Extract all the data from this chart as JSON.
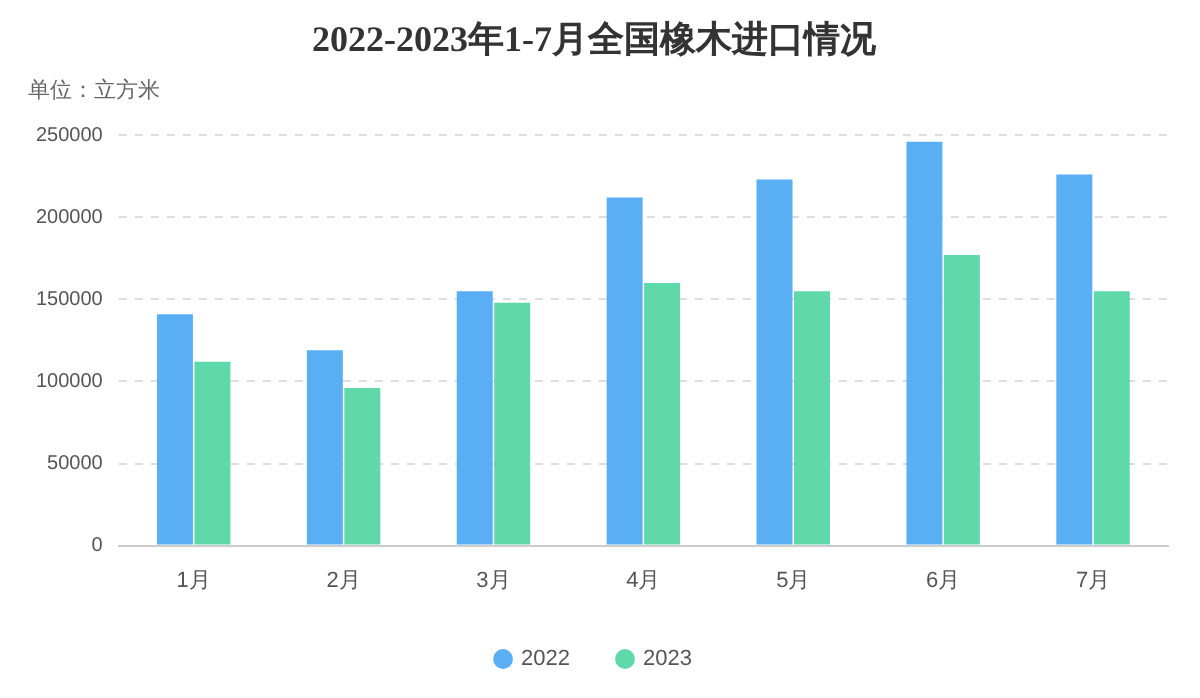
{
  "chart_data": {
    "type": "bar",
    "title": "2022-2023年1-7月全国橡木进口情况",
    "annotations": [
      "单位：立方米"
    ],
    "categories": [
      "1月",
      "2月",
      "3月",
      "4月",
      "5月",
      "6月",
      "7月"
    ],
    "series": [
      {
        "name": "2022",
        "color": "#5aaef4",
        "values": [
          141000,
          119000,
          155000,
          212000,
          223000,
          246000,
          226000
        ]
      },
      {
        "name": "2023",
        "color": "#5fd8aa",
        "values": [
          112000,
          96000,
          148000,
          160000,
          155000,
          177000,
          155000
        ]
      }
    ],
    "ylim": [
      0,
      250000
    ],
    "yticks": [
      0,
      50000,
      100000,
      150000,
      200000,
      250000
    ],
    "grid": "y",
    "legend": "bottom"
  }
}
